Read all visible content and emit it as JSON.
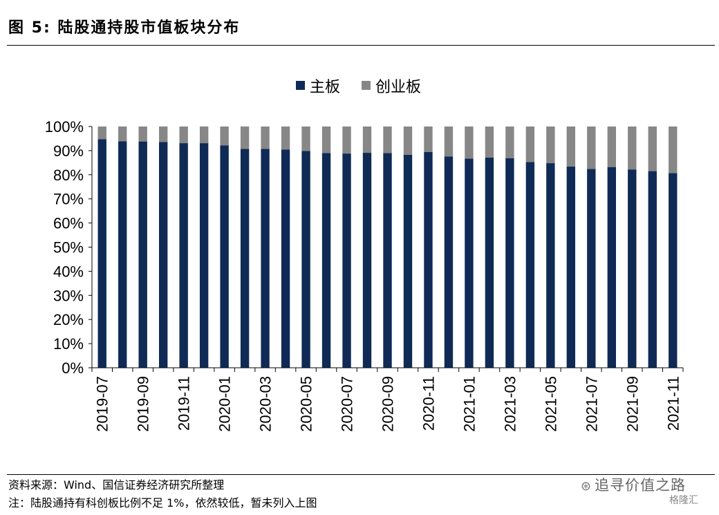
{
  "figure": {
    "title": "图 5:  陆股通持股市值板块分布",
    "source": "资料来源：Wind、国信证券经济研究所整理",
    "note": "注：陆股通持有科创板比例不足 1%，依然较低，暂未列入上图",
    "watermark": "追寻价值之路",
    "watermark2": "格隆汇"
  },
  "chart_data": {
    "type": "bar",
    "stacked": true,
    "title": "",
    "xlabel": "",
    "ylabel": "",
    "ylim": [
      0,
      100
    ],
    "yticks": [
      "0%",
      "10%",
      "20%",
      "30%",
      "40%",
      "50%",
      "60%",
      "70%",
      "80%",
      "90%",
      "100%"
    ],
    "legend_position": "top",
    "categories": [
      "2019-07",
      "2019-08",
      "2019-09",
      "2019-10",
      "2019-11",
      "2019-12",
      "2020-01",
      "2020-02",
      "2020-03",
      "2020-04",
      "2020-05",
      "2020-06",
      "2020-07",
      "2020-08",
      "2020-09",
      "2020-10",
      "2020-11",
      "2020-12",
      "2021-01",
      "2021-02",
      "2021-03",
      "2021-04",
      "2021-05",
      "2021-06",
      "2021-07",
      "2021-08",
      "2021-09",
      "2021-10",
      "2021-11"
    ],
    "xtick_labels": [
      "2019-07",
      "",
      "2019-09",
      "",
      "2019-11",
      "",
      "2020-01",
      "",
      "2020-03",
      "",
      "2020-05",
      "",
      "2020-07",
      "",
      "2020-09",
      "",
      "2020-11",
      "",
      "2021-01",
      "",
      "2021-03",
      "",
      "2021-05",
      "",
      "2021-07",
      "",
      "2021-09",
      "",
      "2021-11"
    ],
    "series": [
      {
        "name": "主板",
        "color": "#0f2a55",
        "values": [
          94.7,
          93.9,
          93.8,
          93.6,
          93.1,
          93.1,
          92.2,
          90.7,
          90.7,
          90.4,
          89.9,
          89.0,
          88.8,
          89.1,
          89.0,
          88.3,
          89.4,
          87.6,
          86.7,
          87.1,
          86.9,
          85.3,
          84.8,
          83.4,
          82.4,
          83.2,
          82.2,
          81.5,
          80.7
        ]
      },
      {
        "name": "创业板",
        "color": "#878787",
        "values": [
          5.3,
          6.1,
          6.2,
          6.4,
          6.9,
          6.9,
          7.8,
          9.3,
          9.3,
          9.6,
          10.1,
          11.0,
          11.2,
          10.9,
          11.0,
          11.7,
          10.6,
          12.4,
          13.3,
          12.9,
          13.1,
          14.7,
          15.2,
          16.6,
          17.6,
          16.8,
          17.8,
          18.5,
          19.3
        ]
      }
    ]
  }
}
